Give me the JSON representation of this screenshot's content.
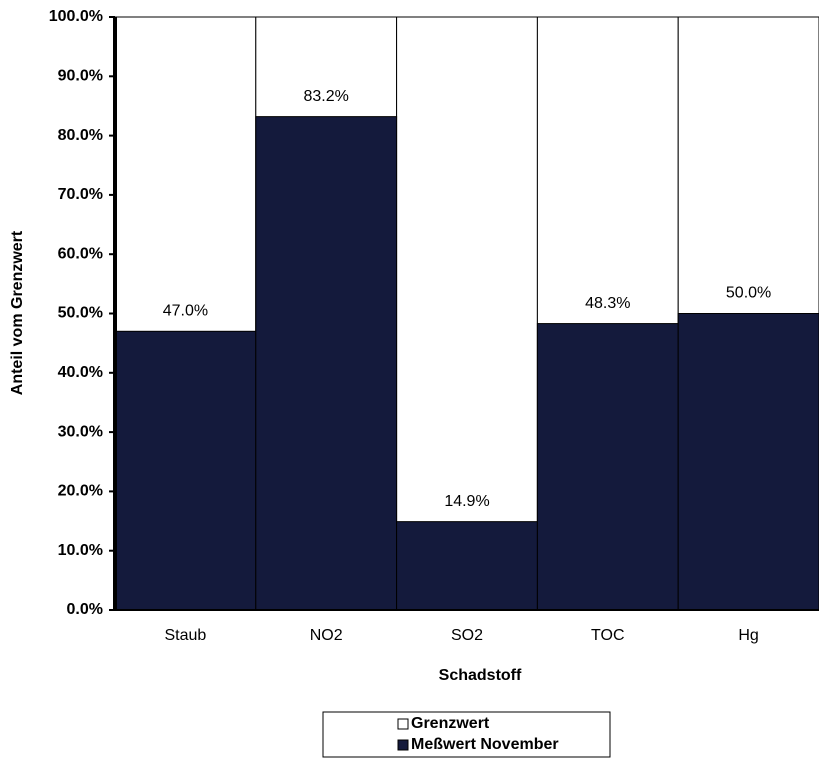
{
  "chart_data": {
    "type": "bar",
    "overlap": true,
    "x_label": "Schadstoff",
    "y_label": "Anteil vom Grenzwert",
    "categories": [
      "Staub",
      "NO2",
      "SO2",
      "TOC",
      "Hg"
    ],
    "series": [
      {
        "name": "Grenzwert",
        "color": "#ffffff",
        "values": [
          100,
          100,
          100,
          100,
          100
        ]
      },
      {
        "name": "Meßwert November",
        "color": "#141a3c",
        "values": [
          47.0,
          83.2,
          14.9,
          48.3,
          50.0
        ],
        "value_labels": [
          "47.0%",
          "83.2%",
          "14.9%",
          "48.3%",
          "50.0%"
        ]
      }
    ],
    "ylim": [
      0,
      100
    ],
    "yticks": [
      {
        "value": 0,
        "label": "0.0%"
      },
      {
        "value": 10,
        "label": "10.0%"
      },
      {
        "value": 20,
        "label": "20.0%"
      },
      {
        "value": 30,
        "label": "30.0%"
      },
      {
        "value": 40,
        "label": "40.0%"
      },
      {
        "value": 50,
        "label": "50.0%"
      },
      {
        "value": 60,
        "label": "60.0%"
      },
      {
        "value": 70,
        "label": "70.0%"
      },
      {
        "value": 80,
        "label": "80.0%"
      },
      {
        "value": 90,
        "label": "90.0%"
      },
      {
        "value": 100,
        "label": "100.0%"
      }
    ]
  }
}
